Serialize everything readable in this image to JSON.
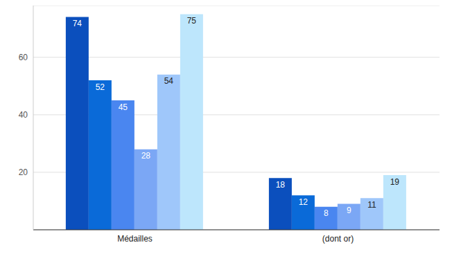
{
  "chart_data": {
    "type": "bar",
    "categories": [
      "Médailles",
      "(dont or)"
    ],
    "series": [
      {
        "color": "#0b4fbd",
        "values": [
          74,
          18
        ]
      },
      {
        "color": "#0a6ad8",
        "values": [
          52,
          12
        ]
      },
      {
        "color": "#4a86f0",
        "values": [
          45,
          8
        ]
      },
      {
        "color": "#7ba7f5",
        "values": [
          28,
          9
        ]
      },
      {
        "color": "#9fc7fa",
        "values": [
          54,
          11
        ]
      },
      {
        "color": "#bde6fc",
        "values": [
          75,
          19
        ]
      }
    ],
    "ylim": [
      0,
      78
    ],
    "yticks": [
      20,
      40,
      60
    ],
    "grid": true,
    "data_labels": true
  }
}
